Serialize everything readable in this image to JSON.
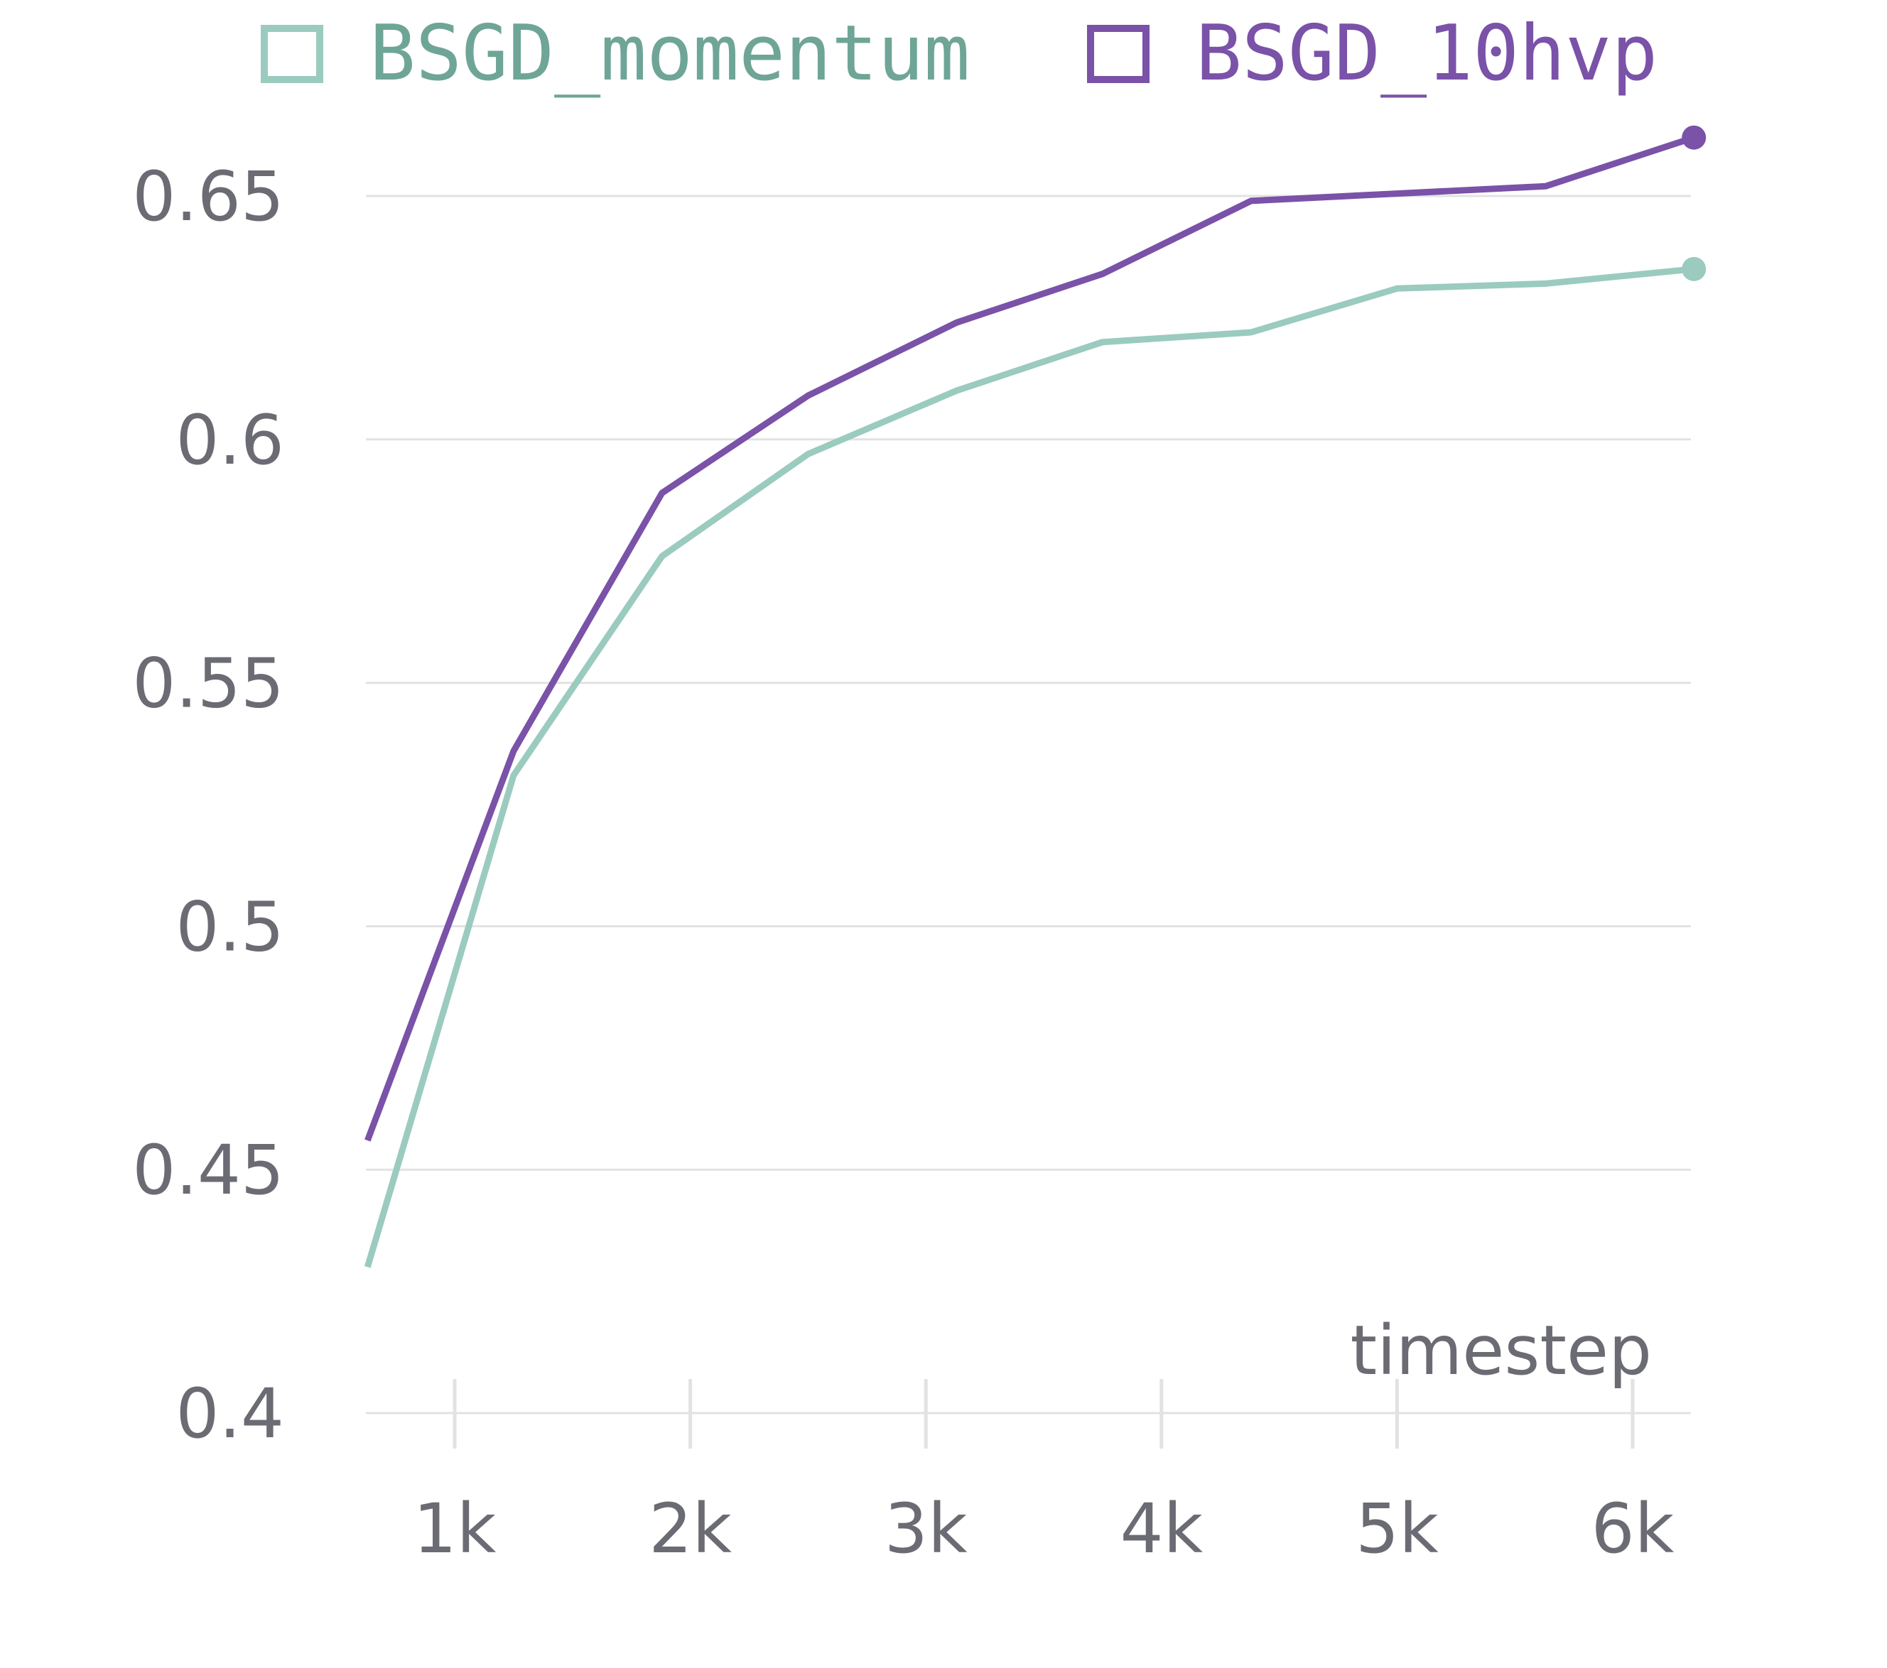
{
  "chart_data": {
    "type": "line",
    "xlabel": "timestep",
    "ylabel": "",
    "title": "",
    "xlim": [
      630,
      6260
    ],
    "ylim": [
      0.4,
      0.665
    ],
    "xticks": [
      1000,
      2000,
      3000,
      4000,
      5000,
      6000
    ],
    "xtick_labels": [
      "1k",
      "2k",
      "3k",
      "4k",
      "5k",
      "6k"
    ],
    "yticks": [
      0.4,
      0.45,
      0.5,
      0.55,
      0.6,
      0.65
    ],
    "ytick_labels": [
      "0.4",
      "0.45",
      "0.5",
      "0.55",
      "0.6",
      "0.65"
    ],
    "grid": "horizontal",
    "legend_position": "top",
    "series": [
      {
        "name": "BSGD_momentum",
        "color": "#9acbbe",
        "legend_text_color": "#6fa596",
        "x": [
          630,
          1250,
          1880,
          2500,
          3130,
          3750,
          4380,
          5000,
          5630,
          6260
        ],
        "y": [
          0.43,
          0.531,
          0.576,
          0.597,
          0.61,
          0.62,
          0.622,
          0.631,
          0.632,
          0.635
        ]
      },
      {
        "name": "BSGD_10hvp",
        "color": "#7a52a8",
        "legend_text_color": "#7a52a8",
        "x": [
          630,
          1250,
          1880,
          2500,
          3130,
          3750,
          4380,
          5000,
          5630,
          6260
        ],
        "y": [
          0.456,
          0.536,
          0.589,
          0.609,
          0.624,
          0.634,
          0.649,
          0.6505,
          0.652,
          0.662
        ]
      }
    ]
  }
}
